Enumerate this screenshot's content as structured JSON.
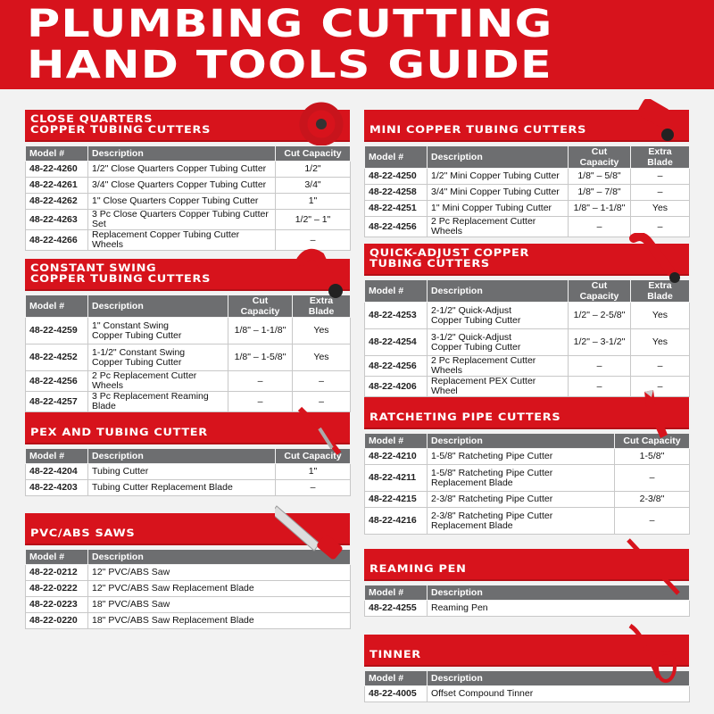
{
  "title": {
    "line1": "PLUMBING CUTTING",
    "line2": "HAND TOOLS GUIDE"
  },
  "colors": {
    "brand_red": "#d7131c",
    "header_gray": "#6d6e70"
  },
  "sections": [
    {
      "title": "CLOSE QUARTERS\nCOPPER TUBING CUTTERS",
      "icon": "close-quarters-cutter-icon",
      "columns": [
        "Model #",
        "Description",
        "Cut Capacity"
      ],
      "rows": [
        [
          "48-22-4260",
          "1/2\" Close Quarters Copper Tubing Cutter",
          "1/2\""
        ],
        [
          "48-22-4261",
          "3/4\" Close Quarters Copper Tubing Cutter",
          "3/4\""
        ],
        [
          "48-22-4262",
          "1\" Close Quarters Copper Tubing Cutter",
          "1\""
        ],
        [
          "48-22-4263",
          "3 Pc Close Quarters Copper Tubing Cutter Set",
          "1/2\" – 1\""
        ],
        [
          "48-22-4266",
          "Replacement Copper Tubing Cutter Wheels",
          "–"
        ]
      ]
    },
    {
      "title": "CONSTANT SWING\nCOPPER TUBING CUTTERS",
      "icon": "constant-swing-cutter-icon",
      "columns": [
        "Model #",
        "Description",
        "Cut Capacity",
        "Extra Blade"
      ],
      "rows": [
        [
          "48-22-4259",
          "1\" Constant Swing\nCopper Tubing Cutter",
          "1/8\" – 1-1/8\"",
          "Yes"
        ],
        [
          "48-22-4252",
          "1-1/2\" Constant Swing\nCopper Tubing Cutter",
          "1/8\" – 1-5/8\"",
          "Yes"
        ],
        [
          "48-22-4256",
          "2 Pc Replacement Cutter Wheels",
          "–",
          "–"
        ],
        [
          "48-22-4257",
          "3 Pc Replacement Reaming Blade",
          "–",
          "–"
        ]
      ]
    },
    {
      "title": "PEX AND TUBING CUTTER",
      "icon": "pex-cutter-icon",
      "columns": [
        "Model #",
        "Description",
        "Cut Capacity"
      ],
      "rows": [
        [
          "48-22-4204",
          "Tubing Cutter",
          "1\""
        ],
        [
          "48-22-4203",
          "Tubing Cutter Replacement Blade",
          "–"
        ]
      ]
    },
    {
      "title": "PVC/ABS SAWS",
      "icon": "saw-icon",
      "columns": [
        "Model #",
        "Description"
      ],
      "rows": [
        [
          "48-22-0212",
          "12\" PVC/ABS Saw"
        ],
        [
          "48-22-0222",
          "12\" PVC/ABS Saw Replacement Blade"
        ],
        [
          "48-22-0223",
          "18\" PVC/ABS Saw"
        ],
        [
          "48-22-0220",
          "18\" PVC/ABS Saw Replacement Blade"
        ]
      ]
    },
    {
      "title": "MINI COPPER TUBING CUTTERS",
      "icon": "mini-cutter-icon",
      "columns": [
        "Model #",
        "Description",
        "Cut Capacity",
        "Extra Blade"
      ],
      "rows": [
        [
          "48-22-4250",
          "1/2\" Mini Copper Tubing Cutter",
          "1/8\" – 5/8\"",
          "–"
        ],
        [
          "48-22-4258",
          "3/4\" Mini Copper Tubing Cutter",
          "1/8\" – 7/8\"",
          "–"
        ],
        [
          "48-22-4251",
          "1\" Mini Copper Tubing Cutter",
          "1/8\" – 1-1/8\"",
          "Yes"
        ],
        [
          "48-22-4256",
          "2 Pc Replacement Cutter Wheels",
          "–",
          "–"
        ]
      ]
    },
    {
      "title": "QUICK-ADJUST COPPER\nTUBING CUTTERS",
      "icon": "quick-adjust-cutter-icon",
      "columns": [
        "Model #",
        "Description",
        "Cut Capacity",
        "Extra Blade"
      ],
      "rows": [
        [
          "48-22-4253",
          "2-1/2\" Quick-Adjust\nCopper Tubing Cutter",
          "1/2\" – 2-5/8\"",
          "Yes"
        ],
        [
          "48-22-4254",
          "3-1/2\" Quick-Adjust\nCopper Tubing Cutter",
          "1/2\" – 3-1/2\"",
          "Yes"
        ],
        [
          "48-22-4256",
          "2 Pc Replacement Cutter Wheels",
          "–",
          "–"
        ],
        [
          "48-22-4206",
          "Replacement PEX Cutter Wheel",
          "–",
          "–"
        ]
      ]
    },
    {
      "title": "RATCHETING PIPE CUTTERS",
      "icon": "ratcheting-pipe-cutter-icon",
      "columns": [
        "Model #",
        "Description",
        "Cut Capacity"
      ],
      "rows": [
        [
          "48-22-4210",
          "1-5/8\" Ratcheting Pipe Cutter",
          "1-5/8\""
        ],
        [
          "48-22-4211",
          "1-5/8\" Ratcheting Pipe Cutter\nReplacement Blade",
          "–"
        ],
        [
          "48-22-4215",
          "2-3/8\" Ratcheting Pipe Cutter",
          "2-3/8\""
        ],
        [
          "48-22-4216",
          "2-3/8\" Ratcheting Pipe Cutter\nReplacement Blade",
          "–"
        ]
      ]
    },
    {
      "title": "REAMING PEN",
      "icon": "reaming-pen-icon",
      "columns": [
        "Model #",
        "Description"
      ],
      "rows": [
        [
          "48-22-4255",
          "Reaming Pen"
        ]
      ]
    },
    {
      "title": "TINNER",
      "icon": "tinner-icon",
      "columns": [
        "Model #",
        "Description"
      ],
      "rows": [
        [
          "48-22-4005",
          "Offset Compound Tinner"
        ]
      ]
    }
  ]
}
